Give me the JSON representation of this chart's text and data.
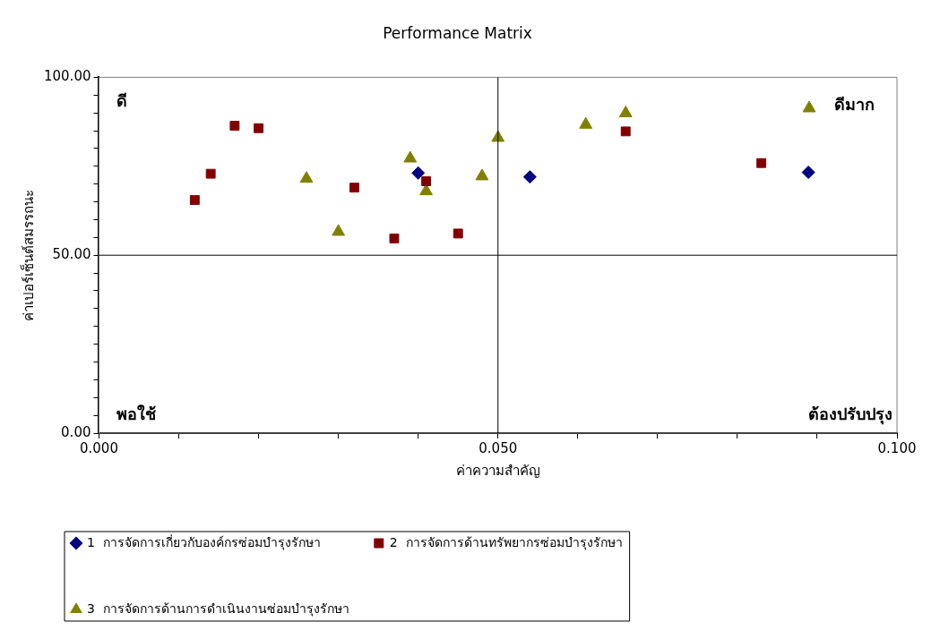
{
  "chart_data": {
    "type": "scatter",
    "title": "Performance Matrix",
    "xlabel": "ค่าความสำคัญ",
    "ylabel": "ค่าเปอร์เซ็นต์สมรรถนะ",
    "xlim": [
      0,
      0.1
    ],
    "xticks": [
      {
        "value": 0,
        "label": "0.000"
      },
      {
        "value": 0.01,
        "label": null
      },
      {
        "value": 0.02,
        "label": null
      },
      {
        "value": 0.03,
        "label": null
      },
      {
        "value": 0.04,
        "label": null
      },
      {
        "value": 0.05,
        "label": "0.050"
      },
      {
        "value": 0.06,
        "label": null
      },
      {
        "value": 0.07,
        "label": null
      },
      {
        "value": 0.08,
        "label": null
      },
      {
        "value": 0.09,
        "label": null
      },
      {
        "value": 0.1,
        "label": "0.100"
      }
    ],
    "ylim": [
      0,
      100
    ],
    "yticks": [
      {
        "value": 0,
        "label": "0.00"
      },
      {
        "value": 5,
        "label": null
      },
      {
        "value": 10,
        "label": null
      },
      {
        "value": 15,
        "label": null
      },
      {
        "value": 20,
        "label": null
      },
      {
        "value": 25,
        "label": null
      },
      {
        "value": 30,
        "label": null
      },
      {
        "value": 35,
        "label": null
      },
      {
        "value": 40,
        "label": null
      },
      {
        "value": 45,
        "label": null
      },
      {
        "value": 50,
        "label": "50.00"
      },
      {
        "value": 55,
        "label": null
      },
      {
        "value": 60,
        "label": null
      },
      {
        "value": 65,
        "label": null
      },
      {
        "value": 70,
        "label": null
      },
      {
        "value": 75,
        "label": null
      },
      {
        "value": 80,
        "label": null
      },
      {
        "value": 85,
        "label": null
      },
      {
        "value": 90,
        "label": null
      },
      {
        "value": 95,
        "label": null
      },
      {
        "value": 100,
        "label": "100.00"
      }
    ],
    "grid": false,
    "legend": "bottom",
    "ref_lines": [
      {
        "axis": "x",
        "value": 0.05,
        "color": "#000000"
      },
      {
        "axis": "y",
        "value": 50,
        "color": "#000000"
      }
    ],
    "annotations": [
      "ดี",
      "ดีมาก",
      "พอใช้",
      "ต้องปรับปรุง"
    ],
    "series": [
      {
        "name": "1  การจัดการเกี่ยวกับองค์กรซ่อมบำรุงรักษา",
        "color": "#000080",
        "marker": "diamond",
        "x": [
          0.04,
          0.054,
          0.0889
        ],
        "values": [
          73.1,
          72.0,
          73.3
        ]
      },
      {
        "name": "2  การจัดการด้านทรัพยากรซ่อมบำรุงรักษา",
        "color": "#800000",
        "marker": "square",
        "x": [
          0.012,
          0.014,
          0.017,
          0.02,
          0.032,
          0.037,
          0.041,
          0.045,
          0.066,
          0.083
        ],
        "values": [
          65.5,
          72.9,
          86.4,
          85.7,
          69.0,
          54.7,
          70.8,
          56.1,
          84.8,
          75.9
        ]
      },
      {
        "name": "3  การจัดการด้านการดำเนินงานซ่อมบำรุงรักษา",
        "color": "#808000",
        "marker": "triangle",
        "x": [
          0.026,
          0.03,
          0.039,
          0.041,
          0.048,
          0.05,
          0.061,
          0.066,
          0.089
        ],
        "values": [
          71.5,
          56.6,
          77.2,
          68.0,
          72.2,
          83.0,
          86.7,
          89.9,
          91.3
        ]
      }
    ]
  }
}
